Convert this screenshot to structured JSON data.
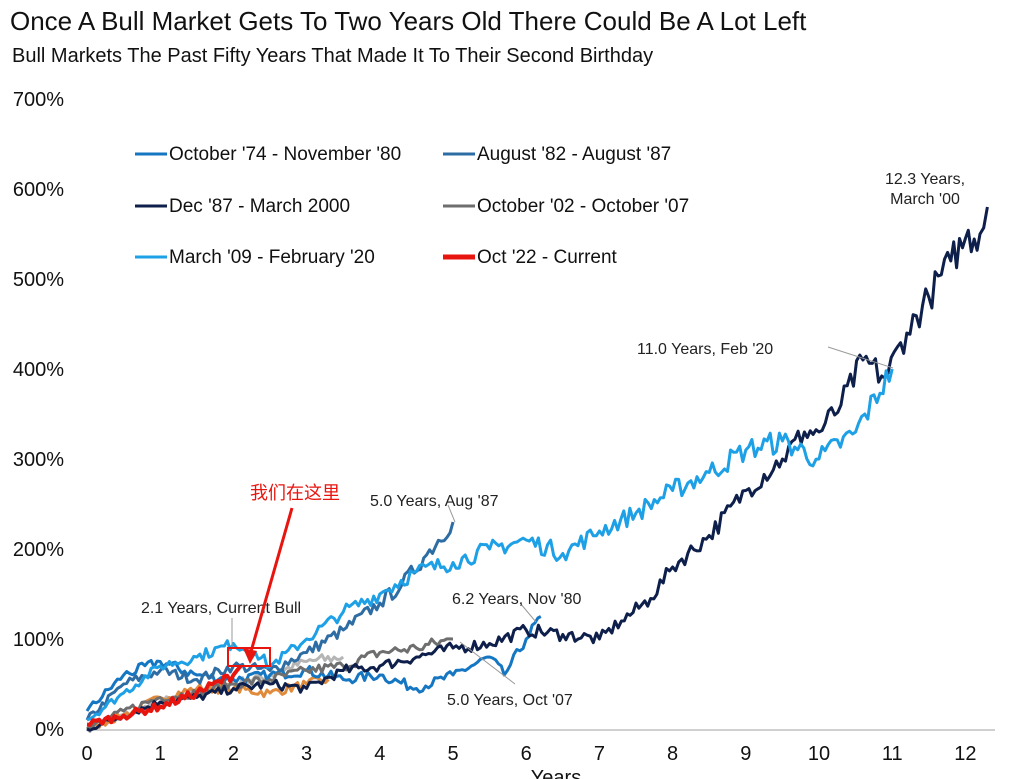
{
  "chart_data": {
    "type": "line",
    "title": "Once A Bull Market Gets To Two Years Old There Could Be A Lot Left",
    "subtitle": "Bull Markets The Past Fifty Years That Made It To Their Second Birthday",
    "xlabel": "Years",
    "ylabel": "",
    "xlim": [
      0,
      12.4
    ],
    "ylim": [
      0,
      700
    ],
    "x_ticks": [
      "0",
      "1",
      "2",
      "3",
      "4",
      "5",
      "6",
      "7",
      "8",
      "9",
      "10",
      "11",
      "12"
    ],
    "y_ticks": [
      "0%",
      "100%",
      "200%",
      "300%",
      "400%",
      "500%",
      "600%",
      "700%"
    ],
    "grid": false,
    "legend_placement": "top-left",
    "series": [
      {
        "name": "October '74 - November '80",
        "color": "#1576c2",
        "points": [
          [
            0,
            20
          ],
          [
            0.5,
            60
          ],
          [
            1,
            75
          ],
          [
            1.5,
            60
          ],
          [
            2,
            55
          ],
          [
            2.5,
            60
          ],
          [
            3,
            65
          ],
          [
            3.5,
            55
          ],
          [
            4,
            60
          ],
          [
            4.5,
            45
          ],
          [
            5,
            60
          ],
          [
            5.5,
            80
          ],
          [
            5.7,
            60
          ],
          [
            6,
            100
          ],
          [
            6.2,
            125
          ]
        ]
      },
      {
        "name": "August '82 - August '87",
        "color": "#2e6da4",
        "points": [
          [
            0,
            10
          ],
          [
            0.5,
            50
          ],
          [
            1,
            65
          ],
          [
            1.5,
            55
          ],
          [
            2,
            70
          ],
          [
            2.5,
            65
          ],
          [
            3,
            85
          ],
          [
            3.5,
            110
          ],
          [
            4,
            140
          ],
          [
            4.3,
            160
          ],
          [
            4.6,
            190
          ],
          [
            5,
            230
          ]
        ]
      },
      {
        "name": "Dec '87 - March 2000",
        "color": "#0d1f4a",
        "points": [
          [
            0,
            0
          ],
          [
            0.5,
            15
          ],
          [
            1,
            30
          ],
          [
            1.5,
            35
          ],
          [
            2,
            45
          ],
          [
            2.5,
            50
          ],
          [
            3,
            45
          ],
          [
            3.5,
            65
          ],
          [
            4,
            70
          ],
          [
            4.5,
            80
          ],
          [
            5,
            90
          ],
          [
            5.5,
            95
          ],
          [
            6,
            110
          ],
          [
            6.5,
            105
          ],
          [
            7,
            100
          ],
          [
            7.3,
            120
          ],
          [
            7.7,
            145
          ],
          [
            8,
            180
          ],
          [
            8.5,
            215
          ],
          [
            9,
            265
          ],
          [
            9.5,
            300
          ],
          [
            9.8,
            330
          ],
          [
            10,
            330
          ],
          [
            10.3,
            360
          ],
          [
            10.6,
            410
          ],
          [
            10.9,
            390
          ],
          [
            11.2,
            440
          ],
          [
            11.5,
            480
          ],
          [
            11.8,
            520
          ],
          [
            12,
            545
          ],
          [
            12.2,
            550
          ],
          [
            12.3,
            580
          ]
        ]
      },
      {
        "name": "October '02 - October '07",
        "color": "#6e6e6e",
        "points": [
          [
            0,
            0
          ],
          [
            0.5,
            20
          ],
          [
            1,
            35
          ],
          [
            1.5,
            40
          ],
          [
            2,
            50
          ],
          [
            2.5,
            55
          ],
          [
            3,
            65
          ],
          [
            3.5,
            70
          ],
          [
            4,
            85
          ],
          [
            4.5,
            90
          ],
          [
            5,
            100
          ]
        ]
      },
      {
        "name": "March '09 - February '20",
        "color": "#1ea0e6",
        "points": [
          [
            0,
            10
          ],
          [
            0.5,
            40
          ],
          [
            1,
            70
          ],
          [
            1.5,
            80
          ],
          [
            2,
            95
          ],
          [
            2.3,
            85
          ],
          [
            2.5,
            70
          ],
          [
            3,
            100
          ],
          [
            3.5,
            130
          ],
          [
            4,
            150
          ],
          [
            4.5,
            175
          ],
          [
            5,
            185
          ],
          [
            5.5,
            200
          ],
          [
            6,
            210
          ],
          [
            6.5,
            195
          ],
          [
            7,
            220
          ],
          [
            7.5,
            240
          ],
          [
            8,
            265
          ],
          [
            8.5,
            285
          ],
          [
            9,
            310
          ],
          [
            9.5,
            320
          ],
          [
            10,
            300
          ],
          [
            10.5,
            330
          ],
          [
            11,
            400
          ]
        ]
      },
      {
        "name": "Oct '22 - Current",
        "color": "#e8150f",
        "points": [
          [
            0,
            5
          ],
          [
            0.5,
            15
          ],
          [
            1,
            25
          ],
          [
            1.5,
            40
          ],
          [
            2,
            60
          ],
          [
            2.1,
            70
          ]
        ]
      },
      {
        "color": "#e08a3c",
        "points": [
          [
            0,
            0
          ],
          [
            0.5,
            15
          ],
          [
            1,
            35
          ],
          [
            1.5,
            45
          ],
          [
            2,
            45
          ],
          [
            2.5,
            40
          ],
          [
            3,
            50
          ],
          [
            3.3,
            55
          ]
        ]
      },
      {
        "color": "#b5b5b5",
        "points": [
          [
            0,
            0
          ],
          [
            1,
            30
          ],
          [
            2,
            50
          ],
          [
            2.5,
            60
          ],
          [
            3,
            75
          ],
          [
            3.5,
            80
          ]
        ]
      }
    ],
    "annotations": [
      {
        "text": "12.3 Years,",
        "text2": "March '00"
      },
      {
        "text": "11.0 Years, Feb '20"
      },
      {
        "text": "5.0 Years, Aug '87"
      },
      {
        "text": "2.1 Years, Current Bull"
      },
      {
        "text": "6.2 Years, Nov '80"
      },
      {
        "text": "5.0 Years, Oct '07"
      },
      {
        "text": "我们在这里"
      }
    ]
  }
}
